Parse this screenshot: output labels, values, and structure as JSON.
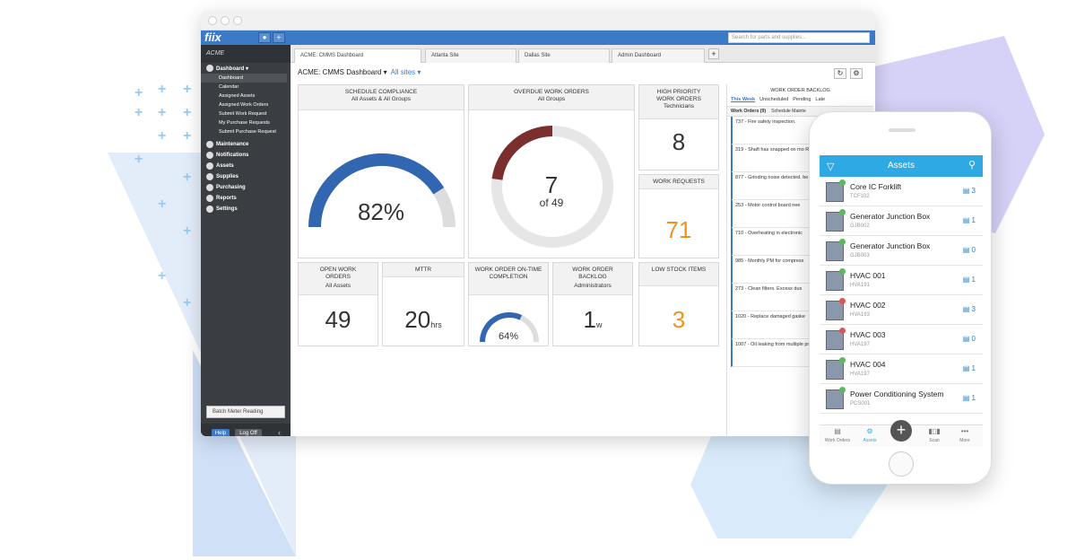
{
  "app": {
    "logo": "fiix",
    "search_placeholder": "Search for parts and supplies..."
  },
  "sidebar": {
    "org": "ACME",
    "dashboard_label": "Dashboard ▾",
    "dashboard_items": [
      "Dashboard",
      "Calendar",
      "Assigned Assets",
      "Assigned Work Orders",
      "Submit Work Request",
      "My Purchase Requests",
      "Submit Purchase Request"
    ],
    "sections": [
      "Maintenance",
      "Notifications",
      "Assets",
      "Supplies",
      "Purchasing",
      "Reports",
      "Settings"
    ],
    "batch_label": "Batch Meter Reading",
    "help_label": "Help",
    "logoff_label": "Log Off"
  },
  "tabs": [
    "ACME: CMMS Dashboard",
    "Atlanta Site",
    "Dallas Site",
    "Admin Dashboard"
  ],
  "dashboard": {
    "title": "ACME: CMMS Dashboard ▾",
    "sites_link": "All sites ▾"
  },
  "widgets": {
    "schedule_compliance": {
      "title": "SCHEDULE COMPLIANCE",
      "subtitle": "All Assets & All Groups",
      "value": "82%",
      "fraction": 0.82
    },
    "overdue_work_orders": {
      "title": "OVERDUE WORK ORDERS",
      "subtitle": "All Groups",
      "value": "7",
      "of": "of 49",
      "fraction": 0.143
    },
    "high_priority": {
      "title": "HIGH PRIORITY WORK ORDERS",
      "subtitle": "Technicians",
      "value": "8"
    },
    "work_requests": {
      "title": "WORK REQUESTS",
      "value": "71"
    },
    "open_work_orders": {
      "title": "OPEN WORK ORDERS",
      "subtitle": "All Assets",
      "value": "49"
    },
    "mttr": {
      "title": "MTTR",
      "value": "20",
      "unit": "hrs"
    },
    "on_time": {
      "title": "WORK ORDER ON-TIME COMPLETION",
      "value": "64%",
      "fraction": 0.64
    },
    "backlog": {
      "title": "WORK ORDER BACKLOG",
      "subtitle": "Administrators",
      "value": "1",
      "unit": "w"
    },
    "low_stock": {
      "title": "LOW STOCK ITEMS",
      "value": "3"
    }
  },
  "backlog_panel": {
    "title": "WORK ORDER BACKLOG",
    "tabs": [
      "This Week",
      "Unscheduled",
      "Pending",
      "Late"
    ],
    "subtabs": [
      "Work Orders (9)",
      "Schedule Mainte"
    ],
    "items": [
      "737 - Fire safety inspection.",
      "319 - Shaft has snapped on mo Replacement part on order.",
      "877 - Grinding noise detected. be taken offline.",
      "253 - Motor control board nee",
      "710 - Overheating in electronic",
      "985 - Monthly PM for compress",
      "273 - Clean filters. Excess dus",
      "1020 - Replace damaged gaske",
      "1007 - Oil leaking from multiple press."
    ]
  },
  "phone": {
    "title": "Assets",
    "assets": [
      {
        "name": "Core IC Forklift",
        "id": "TCF102",
        "count": "3",
        "status": "#5cb85c"
      },
      {
        "name": "Generator Junction Box",
        "id": "GJB002",
        "count": "1",
        "status": "#5cb85c"
      },
      {
        "name": "Generator Junction Box",
        "id": "GJB003",
        "count": "0",
        "status": "#5cb85c"
      },
      {
        "name": "HVAC 001",
        "id": "HVA191",
        "count": "1",
        "status": "#5cb85c"
      },
      {
        "name": "HVAC 002",
        "id": "HVA193",
        "count": "3",
        "status": "#e05555"
      },
      {
        "name": "HVAC 003",
        "id": "HVA197",
        "count": "0",
        "status": "#e05555"
      },
      {
        "name": "HVAC 004",
        "id": "HVA197",
        "count": "1",
        "status": "#5cb85c"
      },
      {
        "name": "Power Conditioning System",
        "id": "PCS001",
        "count": "1",
        "status": "#5cb85c"
      }
    ],
    "tabbar": [
      "Work Orders",
      "Assets",
      "Scan",
      "More"
    ]
  },
  "colors": {
    "accent": "#3d7ac6",
    "gauge_blue": "#3366b0",
    "gauge_red": "#7a2e2e",
    "orange": "#f0921e",
    "mobile_header": "#2fa9e3"
  }
}
